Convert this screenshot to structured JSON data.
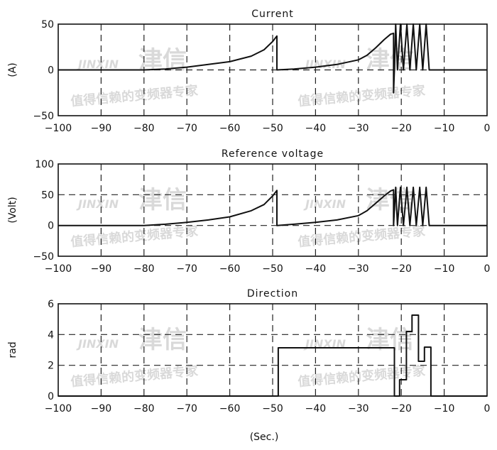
{
  "watermark": {
    "brand": "JINXIN",
    "cn": "津信",
    "slogan": "值得信赖的变频器专家"
  },
  "chart_data": [
    {
      "type": "line",
      "title": "Current",
      "xlabel": "",
      "ylabel": "(A)",
      "xlim": [
        -100,
        0
      ],
      "ylim": [
        -50,
        50
      ],
      "xticks": [
        -100,
        -90,
        -80,
        -70,
        -60,
        -50,
        -40,
        -30,
        -20,
        -10,
        0
      ],
      "yticks": [
        -50,
        0,
        50
      ],
      "grid": true,
      "color": "#111111",
      "x": [
        -100,
        -80,
        -75,
        -70,
        -65,
        -60,
        -55,
        -52,
        -50,
        -49,
        -49,
        -45,
        -40,
        -35,
        -30,
        -28,
        -26,
        -24,
        -22.5,
        -21.8,
        -21.8,
        -21.6,
        -21.3,
        -20.9,
        -20.2,
        -19.5,
        -18.7,
        -18.0,
        -17.2,
        -16.5,
        -15.7,
        -15.0,
        -14.2,
        -13.5,
        0
      ],
      "y": [
        0,
        0,
        1,
        3,
        6,
        9,
        15,
        22,
        31,
        37,
        0,
        1,
        3,
        6,
        11,
        16,
        24,
        33,
        39,
        40,
        -25,
        0,
        50,
        0,
        50,
        0,
        50,
        0,
        50,
        0,
        50,
        0,
        50,
        0,
        0
      ]
    },
    {
      "type": "line",
      "title": "Reference voltage",
      "xlabel": "",
      "ylabel": "(Volt)",
      "xlim": [
        -100,
        0
      ],
      "ylim": [
        -50,
        100
      ],
      "xticks": [
        -100,
        -90,
        -80,
        -70,
        -60,
        -50,
        -40,
        -30,
        -20,
        -10,
        0
      ],
      "yticks": [
        -50,
        0,
        50,
        100
      ],
      "grid": true,
      "color": "#111111",
      "x": [
        -100,
        -80,
        -75,
        -70,
        -65,
        -60,
        -55,
        -52,
        -50,
        -49,
        -49,
        -45,
        -40,
        -35,
        -30,
        -28,
        -26,
        -24,
        -22.5,
        -21.8,
        -21.8,
        -21.3,
        -20.9,
        -20.2,
        -19.5,
        -18.7,
        -18.0,
        -17.2,
        -16.5,
        -15.7,
        -15.0,
        -14.2,
        -13.5,
        0
      ],
      "y": [
        0,
        0,
        2,
        5,
        9,
        14,
        24,
        34,
        48,
        57,
        0,
        2,
        5,
        9,
        16,
        24,
        36,
        48,
        56,
        58,
        0,
        62,
        0,
        62,
        0,
        62,
        0,
        62,
        0,
        62,
        0,
        62,
        0,
        0
      ]
    },
    {
      "type": "line",
      "title": "Direction",
      "xlabel": "(Sec.)",
      "ylabel": "rad",
      "xlim": [
        -100,
        0
      ],
      "ylim": [
        0,
        6
      ],
      "xticks": [
        -100,
        -90,
        -80,
        -70,
        -60,
        -50,
        -40,
        -30,
        -20,
        -10,
        0
      ],
      "yticks": [
        0,
        2,
        4,
        6
      ],
      "grid": true,
      "color": "#111111",
      "x": [
        -100,
        -48.7,
        -48.7,
        -21.6,
        -21.6,
        -20.4,
        -20.4,
        -18.8,
        -18.8,
        -17.5,
        -17.5,
        -16.0,
        -16.0,
        -14.6,
        -14.6,
        -13.1,
        -13.1,
        0
      ],
      "y": [
        0,
        0,
        3.14,
        3.14,
        0,
        0,
        1.06,
        1.06,
        4.2,
        4.2,
        5.26,
        5.26,
        2.26,
        2.26,
        3.18,
        3.18,
        0,
        0
      ]
    }
  ]
}
